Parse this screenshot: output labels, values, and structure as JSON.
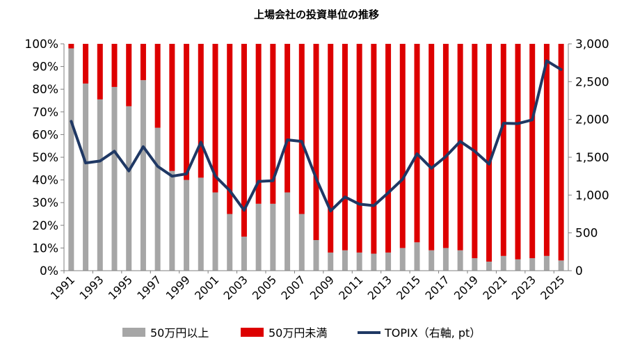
{
  "chart_data": {
    "type": "bar",
    "stacked": true,
    "title": "上場会社の投資単位の推移",
    "categories": [
      "1991",
      "1992",
      "1993",
      "1994",
      "1995",
      "1996",
      "1997",
      "1998",
      "1999",
      "2000",
      "2001",
      "2002",
      "2003",
      "2004",
      "2005",
      "2006",
      "2007",
      "2008",
      "2009",
      "2010",
      "2011",
      "2012",
      "2013",
      "2014",
      "2015",
      "2016",
      "2017",
      "2018",
      "2019",
      "2020",
      "2021",
      "2022",
      "2023",
      "2024",
      "2025"
    ],
    "x_tick_labels": [
      "1991",
      "1993",
      "1995",
      "1997",
      "1999",
      "2001",
      "2003",
      "2005",
      "2007",
      "2009",
      "2011",
      "2013",
      "2015",
      "2017",
      "2019",
      "2021",
      "2023",
      "2025"
    ],
    "series": [
      {
        "name": "50万円以上",
        "color": "#a6a6a6",
        "axis": "left",
        "values": [
          98,
          82.5,
          75.5,
          81,
          72.5,
          84,
          63,
          44,
          40,
          41,
          34.5,
          25,
          15,
          29.5,
          29.5,
          34.5,
          25,
          13.5,
          8,
          9,
          8,
          7.5,
          8,
          10,
          12.5,
          9,
          10,
          9,
          5.5,
          4,
          6.5,
          5,
          5.5,
          6.5,
          4.5
        ]
      },
      {
        "name": "50万円未満",
        "color": "#dd0000",
        "axis": "left",
        "values": [
          2,
          17.5,
          24.5,
          19,
          27.5,
          16,
          37,
          56,
          60,
          59,
          65.5,
          75,
          85,
          70.5,
          70.5,
          65.5,
          75,
          86.5,
          92,
          91,
          92,
          92.5,
          92,
          90,
          87.5,
          91,
          90,
          91,
          94.5,
          96,
          93.5,
          95,
          94.5,
          93.5,
          95.5
        ]
      },
      {
        "name": "TOPIX（右軸, pt）",
        "color": "#1f3864",
        "type": "line",
        "axis": "right",
        "values": [
          1975,
          1425,
          1450,
          1580,
          1320,
          1640,
          1380,
          1250,
          1280,
          1700,
          1250,
          1060,
          800,
          1180,
          1190,
          1730,
          1710,
          1220,
          790,
          975,
          880,
          860,
          1030,
          1210,
          1545,
          1355,
          1510,
          1710,
          1580,
          1410,
          1950,
          1945,
          1995,
          2775,
          2660
        ]
      }
    ],
    "y_left": {
      "min": 0,
      "max": 100,
      "ticks": [
        "0%",
        "10%",
        "20%",
        "30%",
        "40%",
        "50%",
        "60%",
        "70%",
        "80%",
        "90%",
        "100%"
      ]
    },
    "y_right": {
      "min": 0,
      "max": 3000,
      "ticks": [
        "0",
        "500",
        "1,000",
        "1,500",
        "2,000",
        "2,500",
        "3,000"
      ]
    },
    "legend_position": "bottom",
    "grid": false
  }
}
